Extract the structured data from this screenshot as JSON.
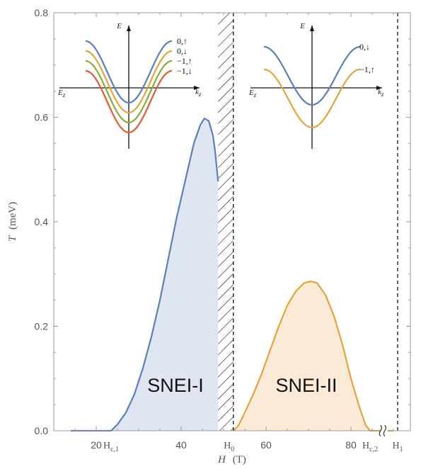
{
  "chart_data": {
    "type": "area",
    "xlabel": "H",
    "xlabel_unit": "(T)",
    "ylabel": "T",
    "ylabel_unit": "(meV)",
    "xlim": [
      10,
      94
    ],
    "ylim": [
      0,
      0.8
    ],
    "x_ticks": [
      {
        "value": 20,
        "label": "20"
      },
      {
        "value": 40,
        "label": "40"
      },
      {
        "value": 60,
        "label": "60"
      },
      {
        "value": 80,
        "label": "80"
      }
    ],
    "special_x_ticks": [
      {
        "value": 23.5,
        "main": "H",
        "sub": "c,1"
      },
      {
        "value": 51.3,
        "main": "H",
        "sub": "0"
      },
      {
        "value": 84.5,
        "main": "H",
        "sub": "c,2"
      },
      {
        "value": 91,
        "main": "H",
        "sub": "1"
      }
    ],
    "y_ticks": [
      {
        "value": 0.0,
        "label": "0.0"
      },
      {
        "value": 0.2,
        "label": "0.2"
      },
      {
        "value": 0.4,
        "label": "0.4"
      },
      {
        "value": 0.6,
        "label": "0.6"
      },
      {
        "value": 0.8,
        "label": "0.8"
      }
    ],
    "grid": false,
    "hatched_region": [
      48.7,
      52.3
    ],
    "dashed_lines_x": [
      52.3,
      91
    ],
    "axis_break_x": 87.8,
    "series": [
      {
        "name": "SNEI-I",
        "color": "#5b7fb8",
        "fill": "#e0e6f1",
        "x": [
          14,
          20,
          23.5,
          25,
          27,
          29,
          31,
          33,
          35,
          37,
          39,
          41,
          43,
          44.5,
          45.5,
          46.5,
          47.5,
          48,
          48.7
        ],
        "y": [
          0.0,
          0.0,
          0.0,
          0.012,
          0.035,
          0.07,
          0.12,
          0.18,
          0.25,
          0.33,
          0.41,
          0.48,
          0.55,
          0.585,
          0.598,
          0.593,
          0.565,
          0.535,
          0.477
        ]
      },
      {
        "name": "SNEI-II",
        "color": "#e6a33c",
        "fill": "#fbebd6",
        "x": [
          52.3,
          53.5,
          55,
          57,
          59,
          61,
          63,
          65,
          67,
          69,
          70.5,
          72,
          74,
          76,
          78,
          80,
          82,
          83.5,
          84.5,
          87.5,
          90
        ],
        "y": [
          0.0,
          0.01,
          0.035,
          0.07,
          0.11,
          0.155,
          0.2,
          0.24,
          0.267,
          0.283,
          0.286,
          0.283,
          0.26,
          0.22,
          0.165,
          0.1,
          0.045,
          0.01,
          0.0,
          0.0,
          0.0
        ]
      }
    ],
    "insets": [
      {
        "axis_labels": {
          "y": "E",
          "x": "k",
          "x_sub": "z",
          "left": "E",
          "left_sub": "z"
        },
        "bands": [
          {
            "label": "0,↑",
            "color": "#5b7fb8"
          },
          {
            "label": "0,↓",
            "color": "#e6a33c"
          },
          {
            "label": "−1,↑",
            "color": "#8aab35"
          },
          {
            "label": "−1,↓",
            "color": "#e35b2f"
          }
        ]
      },
      {
        "axis_labels": {
          "y": "E",
          "x": "k",
          "x_sub": "z",
          "left": "E",
          "left_sub": "z"
        },
        "bands": [
          {
            "label": "0,↓",
            "color": "#5b7fb8"
          },
          {
            "label": "−1,↑",
            "color": "#e6a33c"
          }
        ]
      }
    ],
    "annotations": [
      "SNEI-I",
      "SNEI-II"
    ]
  }
}
